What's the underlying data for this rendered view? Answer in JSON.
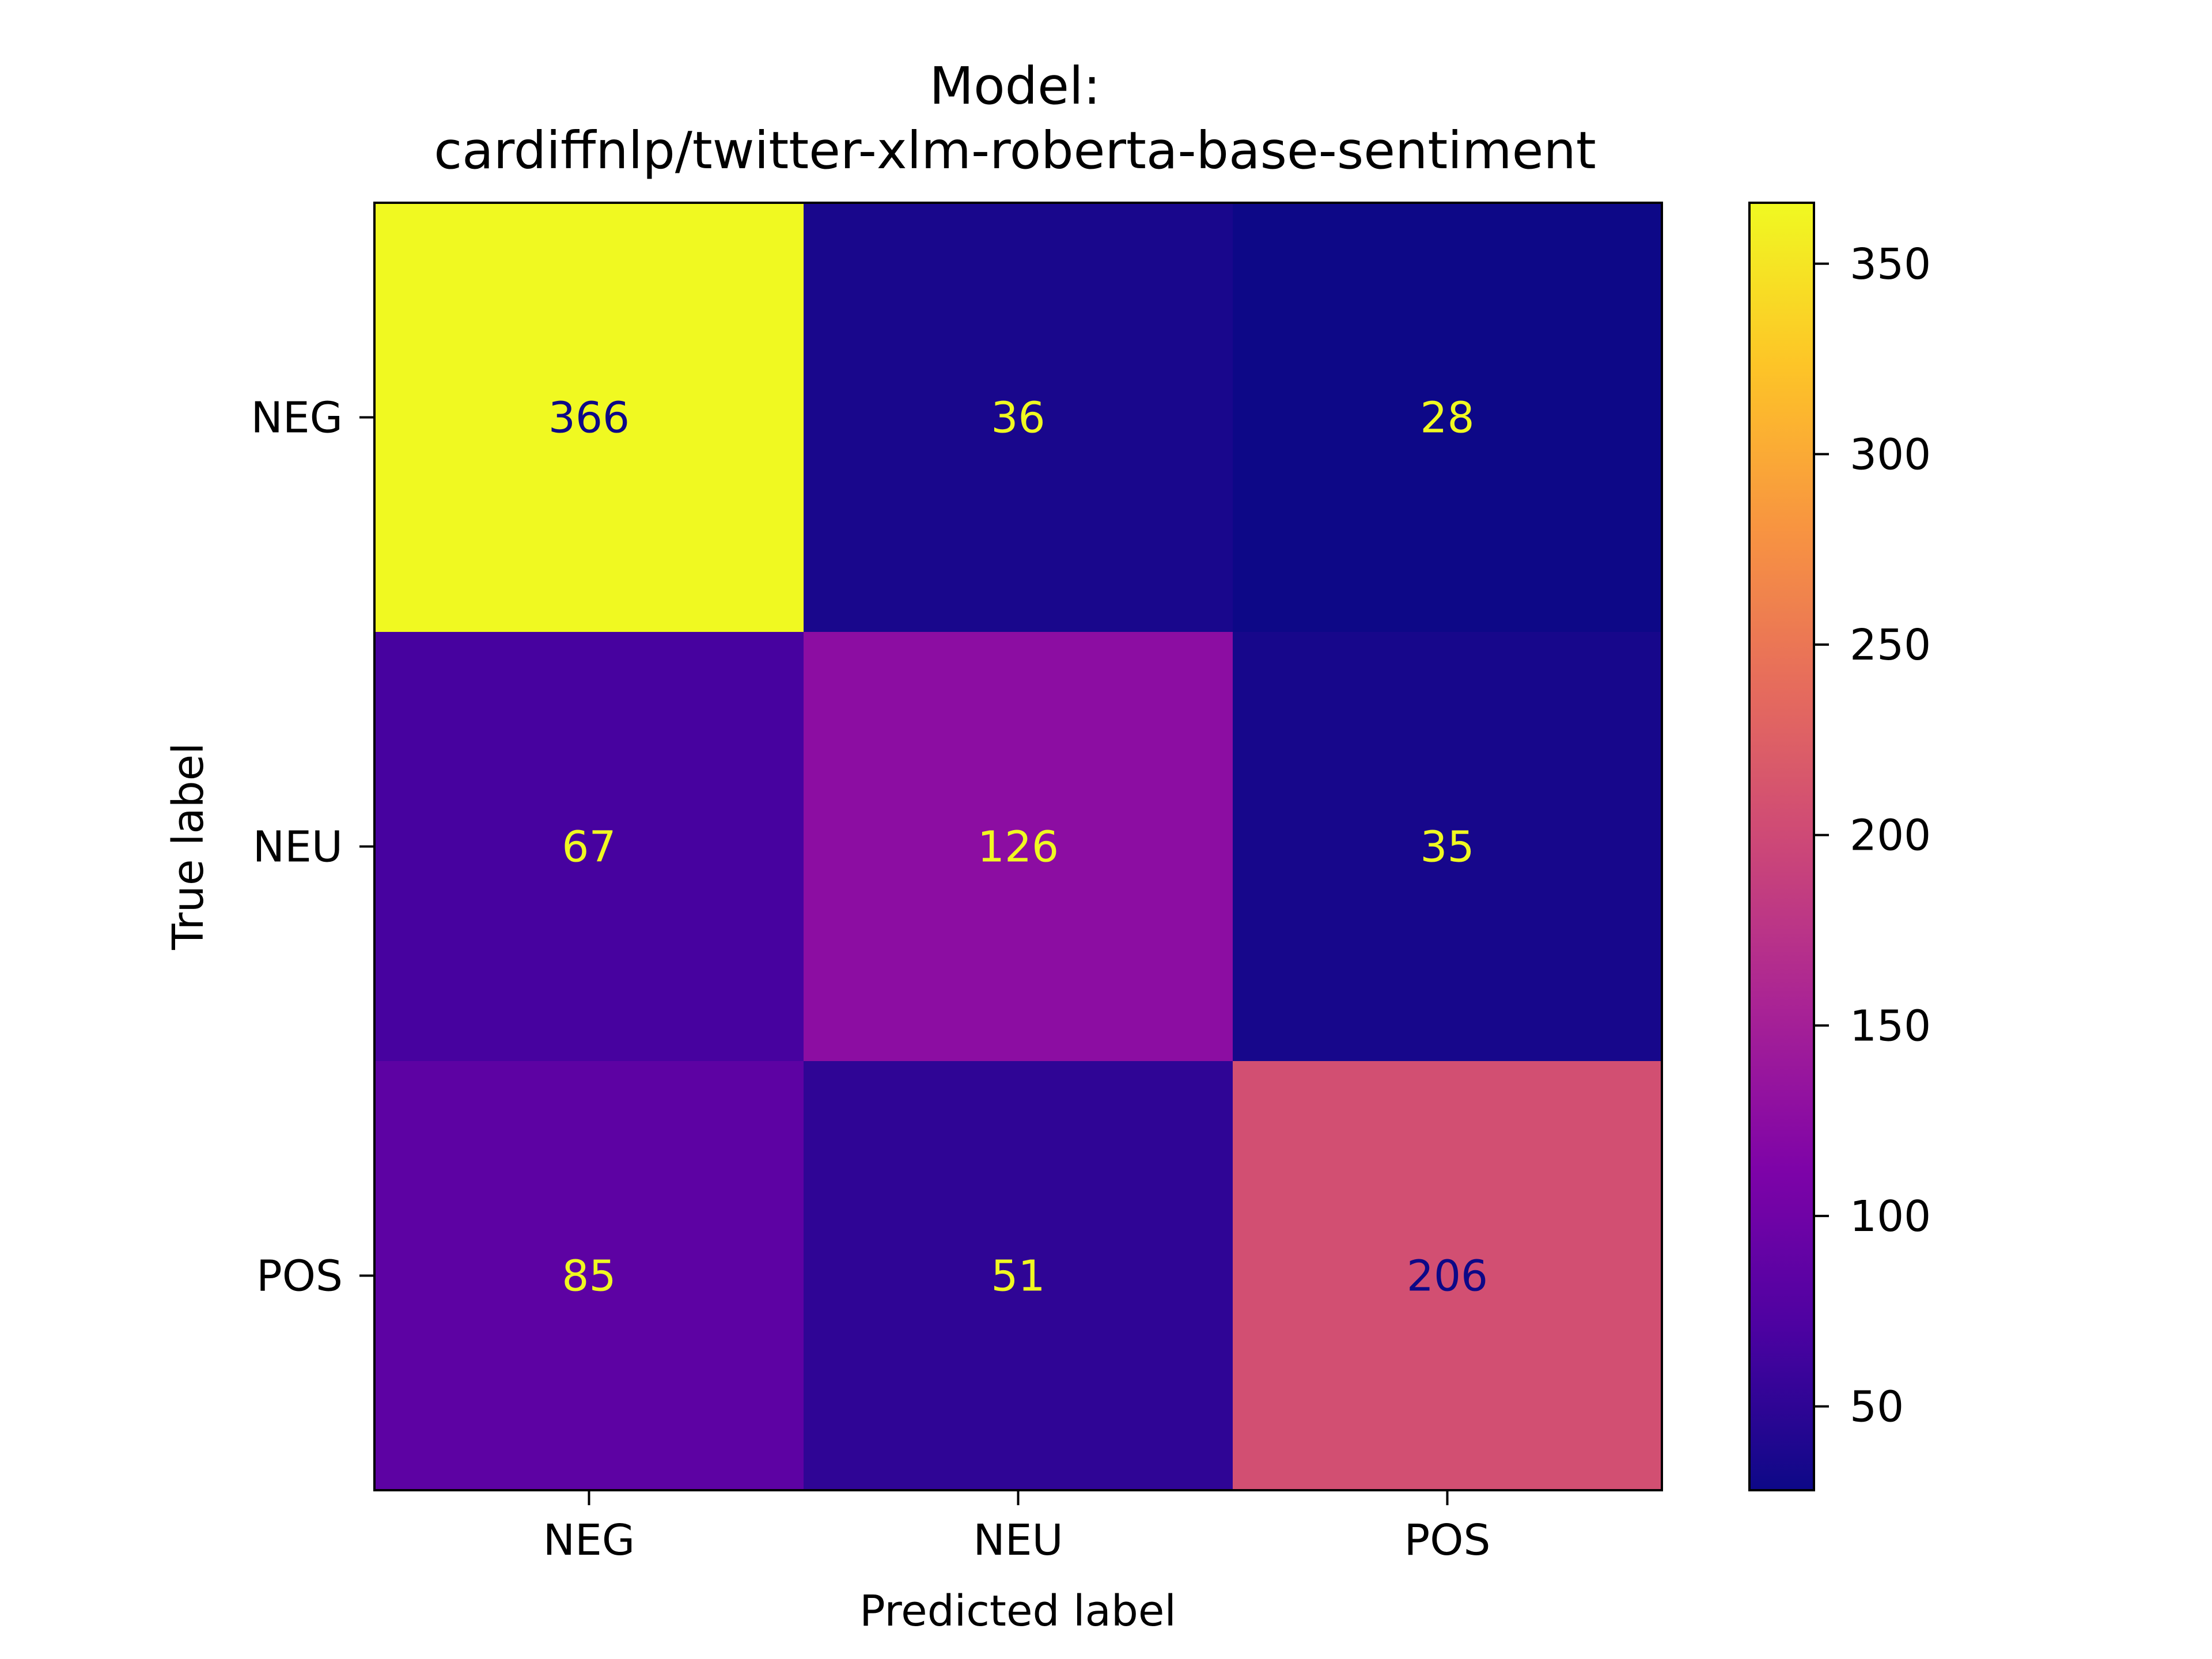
{
  "chart_data": {
    "type": "heatmap",
    "title_lines": [
      "Model:",
      "cardiffnlp/twitter-xlm-roberta-base-sentiment"
    ],
    "xlabel": "Predicted label",
    "ylabel": "True label",
    "x_categories": [
      "NEG",
      "NEU",
      "POS"
    ],
    "y_categories": [
      "NEG",
      "NEU",
      "POS"
    ],
    "values": [
      [
        366,
        36,
        28
      ],
      [
        67,
        126,
        35
      ],
      [
        85,
        51,
        206
      ]
    ],
    "colormap": "plasma",
    "colorbar": {
      "range": [
        28,
        366
      ],
      "ticks": [
        50,
        100,
        150,
        200,
        250,
        300,
        350
      ]
    },
    "text_colors": {
      "on_dark": "#f0f921",
      "on_light": "#0d0887"
    }
  }
}
